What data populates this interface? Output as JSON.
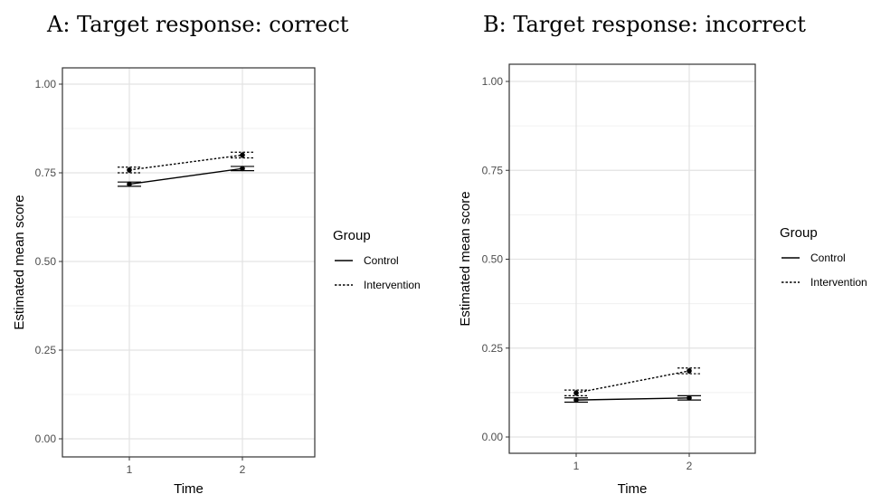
{
  "chart_data": [
    {
      "type": "line",
      "title": "A: Target response: correct",
      "xlabel": "Time",
      "ylabel": "Estimated mean score",
      "x": [
        "1",
        "2"
      ],
      "ylim": [
        0,
        1
      ],
      "yticks": [
        "0.00",
        "0.25",
        "0.50",
        "0.75",
        "1.00"
      ],
      "grid": true,
      "legend_position": "right",
      "legend_title": "Group",
      "series": [
        {
          "name": "Control",
          "linestyle": "solid",
          "values": [
            0.718,
            0.762
          ],
          "errors": [
            0.006,
            0.006
          ]
        },
        {
          "name": "Intervention",
          "linestyle": "dotted",
          "values": [
            0.758,
            0.8
          ],
          "errors": [
            0.008,
            0.008
          ]
        }
      ]
    },
    {
      "type": "line",
      "title": "B: Target response: incorrect",
      "xlabel": "Time",
      "ylabel": "Estimated mean score",
      "x": [
        "1",
        "2"
      ],
      "ylim": [
        0,
        1
      ],
      "yticks": [
        "0.00",
        "0.25",
        "0.50",
        "0.75",
        "1.00"
      ],
      "grid": true,
      "legend_position": "right",
      "legend_title": "Group",
      "series": [
        {
          "name": "Control",
          "linestyle": "solid",
          "values": [
            0.104,
            0.11
          ],
          "errors": [
            0.006,
            0.006
          ]
        },
        {
          "name": "Intervention",
          "linestyle": "dotted",
          "values": [
            0.124,
            0.186
          ],
          "errors": [
            0.008,
            0.008
          ]
        }
      ]
    }
  ]
}
